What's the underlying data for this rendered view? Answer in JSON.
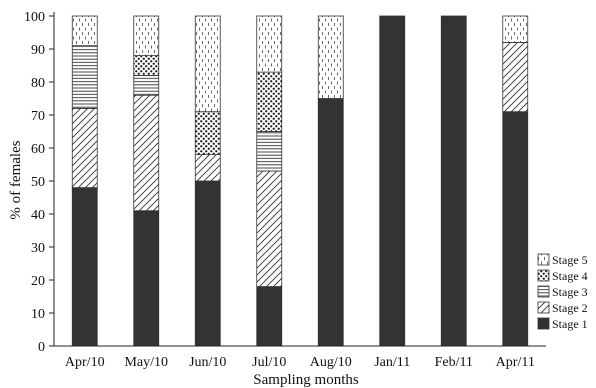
{
  "chart_data": {
    "type": "bar",
    "stacked": true,
    "title": "",
    "xlabel": "Sampling months",
    "ylabel": "% of females",
    "ylim": [
      0,
      100
    ],
    "yticks": [
      0,
      10,
      20,
      30,
      40,
      50,
      60,
      70,
      80,
      90,
      100
    ],
    "grid": false,
    "legend_position": "bottom-right",
    "categories": [
      "Apr/10",
      "May/10",
      "Jun/10",
      "Jul/10",
      "Aug/10",
      "Jan/11",
      "Feb/11",
      "Apr/11"
    ],
    "series": [
      {
        "name": "Stage 1",
        "pattern": "solid",
        "color": "#333333",
        "values": [
          48,
          41,
          50,
          18,
          75,
          100,
          100,
          71
        ]
      },
      {
        "name": "Stage 2",
        "pattern": "diagonal-hatch",
        "color": "#333333",
        "values": [
          24,
          35,
          8,
          35,
          0,
          0,
          0,
          21
        ]
      },
      {
        "name": "Stage 3",
        "pattern": "horizontal-lines",
        "color": "#333333",
        "values": [
          19,
          6,
          0,
          12,
          0,
          0,
          0,
          0
        ]
      },
      {
        "name": "Stage 4",
        "pattern": "dots",
        "color": "#333333",
        "values": [
          0,
          6,
          13,
          18,
          0,
          0,
          0,
          0
        ]
      },
      {
        "name": "Stage 5",
        "pattern": "dashes",
        "color": "#333333",
        "values": [
          9,
          12,
          29,
          17,
          25,
          0,
          0,
          8
        ]
      }
    ]
  }
}
